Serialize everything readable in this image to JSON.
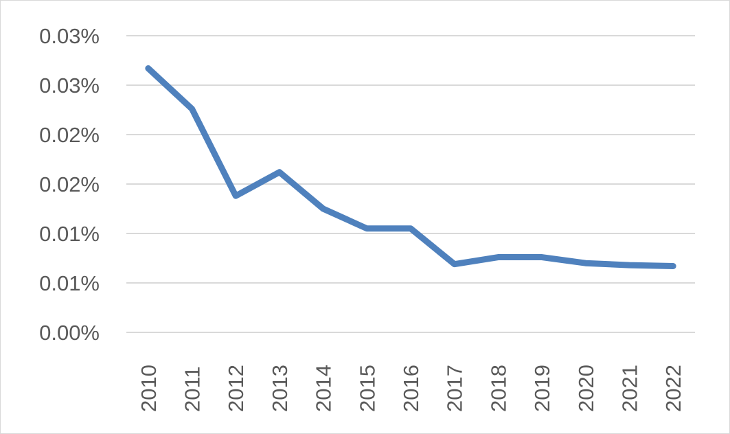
{
  "chart_data": {
    "type": "line",
    "title": "",
    "xlabel": "",
    "ylabel": "",
    "categories": [
      "2010",
      "2011",
      "2012",
      "2013",
      "2014",
      "2015",
      "2016",
      "2017",
      "2018",
      "2019",
      "2020",
      "2021",
      "2022"
    ],
    "series": [
      {
        "values": [
          0.0267,
          0.0226,
          0.0138,
          0.0162,
          0.0125,
          0.0105,
          0.0105,
          0.0069,
          0.0076,
          0.0076,
          0.007,
          0.0068,
          0.0067
        ],
        "color": "#4F81BD"
      }
    ],
    "ylim": [
      0,
      0.03
    ],
    "yticks": [
      0,
      0.005,
      0.01,
      0.015,
      0.02,
      0.025,
      0.03
    ],
    "ytick_labels": [
      "0.00%",
      "0.01%",
      "0.01%",
      "0.02%",
      "0.02%",
      "0.03%",
      "0.03%"
    ],
    "y_unit": "%",
    "grid": true,
    "legend": "none",
    "gridline_color": "#D9D9D9"
  }
}
